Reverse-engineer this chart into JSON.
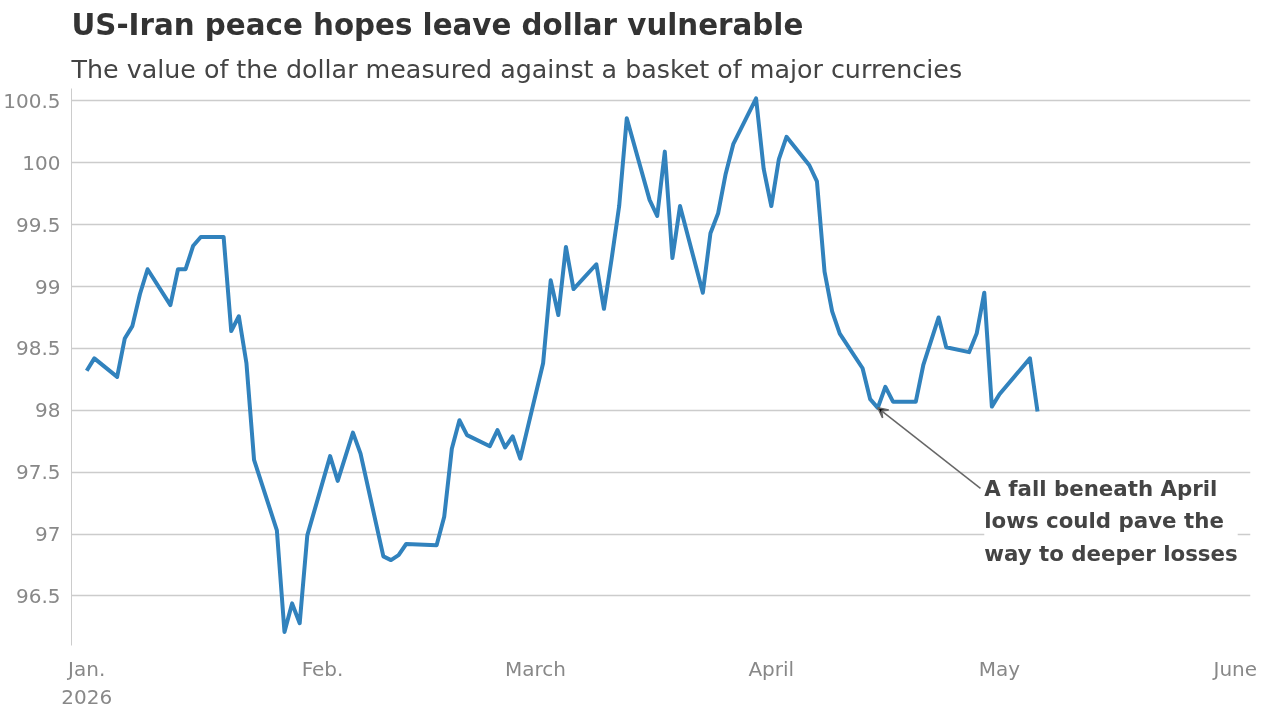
{
  "chart_data": {
    "type": "line",
    "title": "US-Iran peace hopes leave dollar vulnerable",
    "subtitle": "The value of the dollar measured against a basket of major currencies",
    "x": [
      "2026-01-01",
      "2026-01-02",
      "2026-01-05",
      "2026-01-06",
      "2026-01-07",
      "2026-01-08",
      "2026-01-09",
      "2026-01-12",
      "2026-01-13",
      "2026-01-14",
      "2026-01-15",
      "2026-01-16",
      "2026-01-19",
      "2026-01-20",
      "2026-01-21",
      "2026-01-22",
      "2026-01-23",
      "2026-01-26",
      "2026-01-27",
      "2026-01-28",
      "2026-01-29",
      "2026-01-30",
      "2026-02-02",
      "2026-02-03",
      "2026-02-05",
      "2026-02-06",
      "2026-02-09",
      "2026-02-10",
      "2026-02-11",
      "2026-02-12",
      "2026-02-16",
      "2026-02-17",
      "2026-02-18",
      "2026-02-19",
      "2026-02-20",
      "2026-02-23",
      "2026-02-24",
      "2026-02-25",
      "2026-02-26",
      "2026-02-27",
      "2026-03-02",
      "2026-03-03",
      "2026-03-04",
      "2026-03-05",
      "2026-03-06",
      "2026-03-09",
      "2026-03-10",
      "2026-03-11",
      "2026-03-12",
      "2026-03-13",
      "2026-03-16",
      "2026-03-17",
      "2026-03-18",
      "2026-03-19",
      "2026-03-20",
      "2026-03-23",
      "2026-03-24",
      "2026-03-25",
      "2026-03-26",
      "2026-03-27",
      "2026-03-30",
      "2026-03-31",
      "2026-04-01",
      "2026-04-02",
      "2026-04-03",
      "2026-04-06",
      "2026-04-07",
      "2026-04-08",
      "2026-04-09",
      "2026-04-10",
      "2026-04-13",
      "2026-04-14",
      "2026-04-15",
      "2026-04-16",
      "2026-04-17",
      "2026-04-20",
      "2026-04-21",
      "2026-04-23",
      "2026-04-24",
      "2026-04-27",
      "2026-04-28",
      "2026-04-29",
      "2026-04-30",
      "2026-05-01",
      "2026-05-05",
      "2026-05-06"
    ],
    "series": [
      {
        "color": "#3182bd",
        "values": [
          98.32,
          98.42,
          98.27,
          98.58,
          98.68,
          98.94,
          99.14,
          98.85,
          99.14,
          99.14,
          99.33,
          99.4,
          99.4,
          98.64,
          98.76,
          98.38,
          97.6,
          97.03,
          96.21,
          96.44,
          96.28,
          96.99,
          97.63,
          97.43,
          97.82,
          97.65,
          96.82,
          96.79,
          96.83,
          96.92,
          96.91,
          97.14,
          97.69,
          97.92,
          97.8,
          97.71,
          97.84,
          97.7,
          97.79,
          97.61,
          98.38,
          99.05,
          98.77,
          99.32,
          98.98,
          99.18,
          98.82,
          99.22,
          99.65,
          100.36,
          99.7,
          99.57,
          100.09,
          99.23,
          99.65,
          98.95,
          99.43,
          99.59,
          99.91,
          100.15,
          100.52,
          99.95,
          99.65,
          100.03,
          100.21,
          99.98,
          99.85,
          99.12,
          98.8,
          98.62,
          98.34,
          98.09,
          98.02,
          98.19,
          98.07,
          98.07,
          98.37,
          98.75,
          98.51,
          98.47,
          98.62,
          98.95,
          98.03,
          98.13,
          98.42,
          97.99
        ]
      }
    ],
    "xlim": [
      "2025-12-30",
      "2026-06-03"
    ],
    "xticks": [
      {
        "value": "2026-01-01",
        "label": "Jan.\n2026"
      },
      {
        "value": "2026-02-01",
        "label": "Feb."
      },
      {
        "value": "2026-03-01",
        "label": "March"
      },
      {
        "value": "2026-04-01",
        "label": "April"
      },
      {
        "value": "2026-05-01",
        "label": "May"
      },
      {
        "value": "2026-06-01",
        "label": "June"
      }
    ],
    "ylim": [
      96.1,
      100.6
    ],
    "yticks": [
      96.5,
      97,
      97.5,
      98,
      98.5,
      99,
      99.5,
      100,
      100.5
    ],
    "grid": "y",
    "annotations": [
      {
        "text": "A fall beneath April lows could pave the way to deeper losses",
        "x": "2026-04-15",
        "y": 98.02
      }
    ]
  }
}
